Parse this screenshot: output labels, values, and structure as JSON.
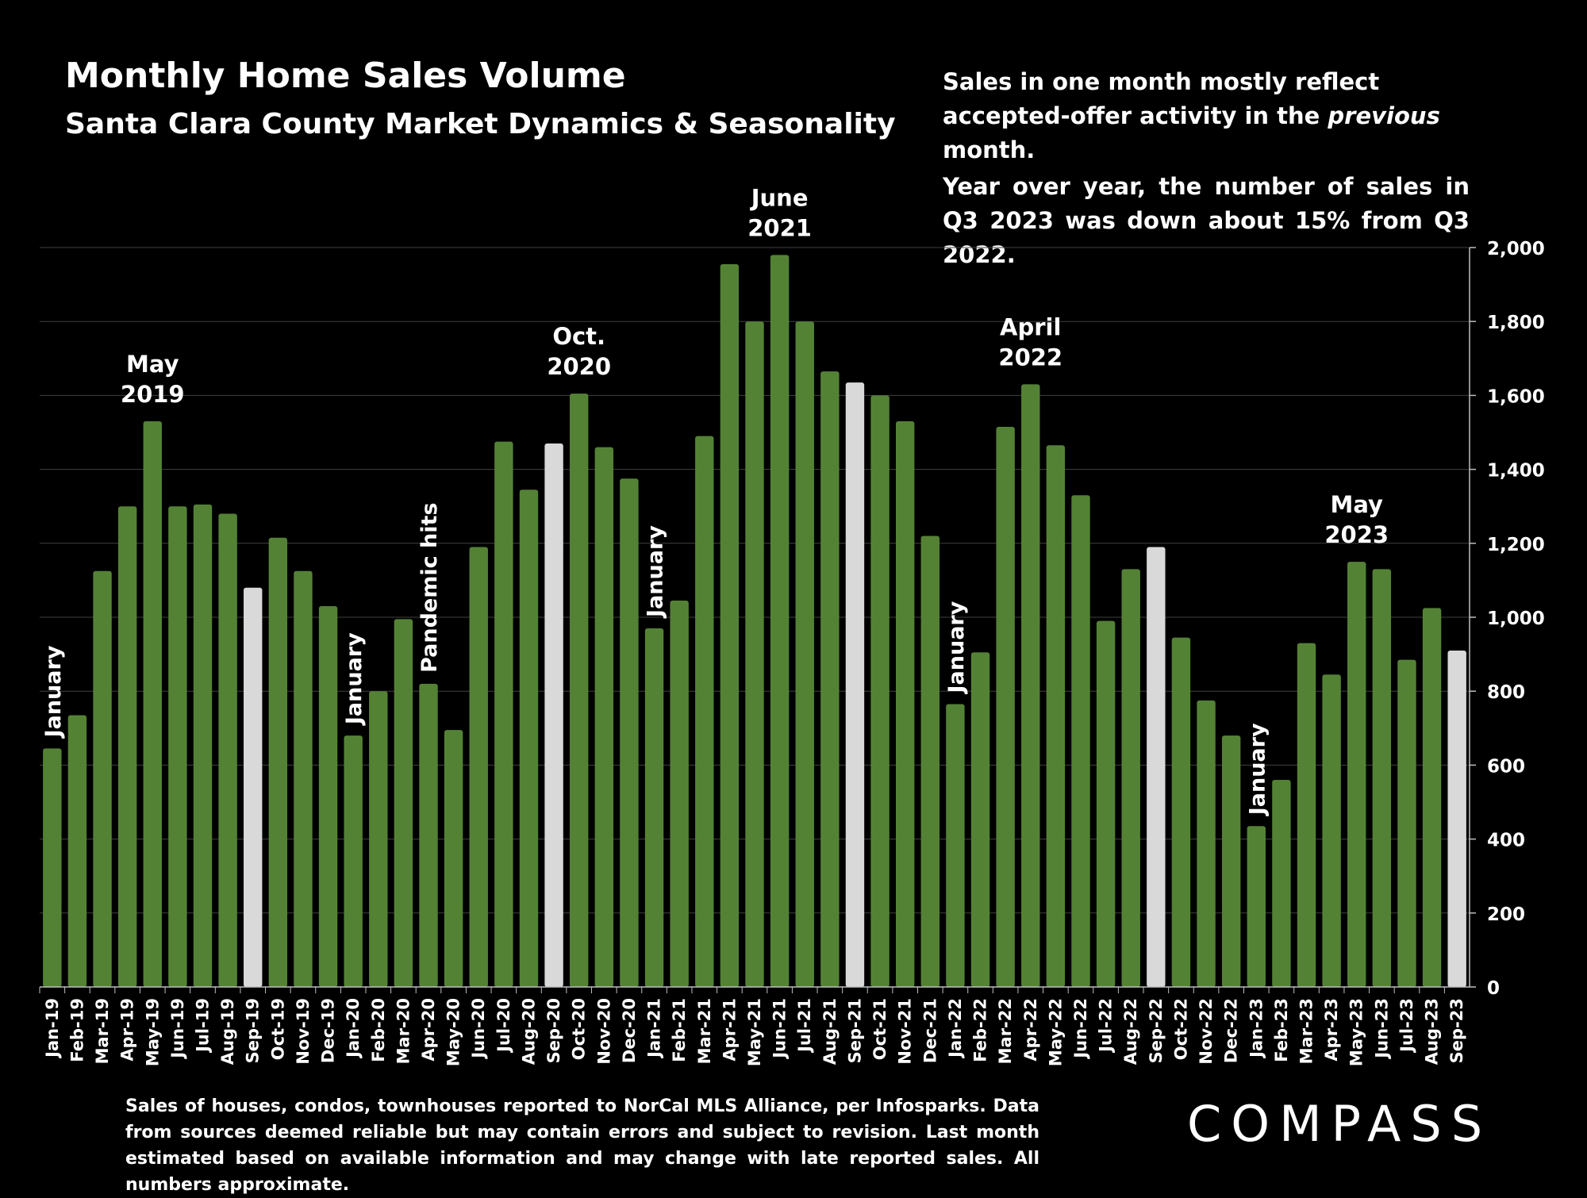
{
  "header": {
    "title": "Monthly Home Sales Volume",
    "subtitle": "Santa Clara County Market Dynamics & Seasonality"
  },
  "notes": {
    "line1_a": "Sales in one month mostly reflect accepted-offer activity in the ",
    "line1_em": "previous",
    "line1_b": " month.",
    "line2": "Year over year, the number of sales in Q3 2023 was down about 15% from Q3 2022."
  },
  "footnote": "Sales of houses, condos, townhouses reported to NorCal MLS Alliance, per Infosparks. Data from sources deemed reliable but may contain errors and subject to revision. Last month estimated based on available information and may change with late reported sales. All numbers approximate.",
  "logo": "COMPASS",
  "colors": {
    "bar": "#548235",
    "highlight": "#d9d9d9",
    "grid": "#404040",
    "background": "#000000",
    "text": "#ffffff"
  },
  "chart_data": {
    "type": "bar",
    "title": "Monthly Home Sales Volume",
    "subtitle": "Santa Clara County Market Dynamics & Seasonality",
    "ylim": [
      0,
      2000
    ],
    "yticks": [
      "0",
      "200",
      "400",
      "600",
      "800",
      "1,000",
      "1,200",
      "1,400",
      "1,600",
      "1,800",
      "2,000"
    ],
    "y_axis_side": "right",
    "grid": true,
    "categories": [
      "Jan-19",
      "Feb-19",
      "Mar-19",
      "Apr-19",
      "May-19",
      "Jun-19",
      "Jul-19",
      "Aug-19",
      "Sep-19",
      "Oct-19",
      "Nov-19",
      "Dec-19",
      "Jan-20",
      "Feb-20",
      "Mar-20",
      "Apr-20",
      "May-20",
      "Jun-20",
      "Jul-20",
      "Aug-20",
      "Sep-20",
      "Oct-20",
      "Nov-20",
      "Dec-20",
      "Jan-21",
      "Feb-21",
      "Mar-21",
      "Apr-21",
      "May-21",
      "Jun-21",
      "Jul-21",
      "Aug-21",
      "Sep-21",
      "Oct-21",
      "Nov-21",
      "Dec-21",
      "Jan-22",
      "Feb-22",
      "Mar-22",
      "Apr-22",
      "May-22",
      "Jun-22",
      "Jul-22",
      "Aug-22",
      "Sep-22",
      "Oct-22",
      "Nov-22",
      "Dec-22",
      "Jan-23",
      "Feb-23",
      "Mar-23",
      "Apr-23",
      "May-23",
      "Jun-23",
      "Jul-23",
      "Aug-23",
      "Sep-23"
    ],
    "values": [
      645,
      735,
      1125,
      1300,
      1530,
      1300,
      1305,
      1280,
      1080,
      1215,
      1125,
      1030,
      680,
      800,
      995,
      820,
      695,
      1190,
      1475,
      1345,
      1470,
      1605,
      1460,
      1375,
      970,
      1045,
      1490,
      1955,
      1800,
      1980,
      1800,
      1665,
      1635,
      1600,
      1530,
      1220,
      765,
      905,
      1515,
      1630,
      1465,
      1330,
      990,
      1130,
      1190,
      945,
      775,
      680,
      435,
      560,
      930,
      845,
      1150,
      1130,
      885,
      1025,
      910
    ],
    "highlighted": [
      "Sep-19",
      "Sep-20",
      "Sep-21",
      "Sep-22",
      "Sep-23"
    ],
    "annotations": [
      {
        "category": "Jan-19",
        "text": "January",
        "rotated": true
      },
      {
        "category": "May-19",
        "lines": [
          "May",
          "2019"
        ]
      },
      {
        "category": "Jan-20",
        "text": "January",
        "rotated": true
      },
      {
        "category": "Apr-20",
        "text": "Pandemic hits",
        "rotated": true
      },
      {
        "category": "Oct-20",
        "lines": [
          "Oct.",
          "2020"
        ]
      },
      {
        "category": "Jan-21",
        "text": "January",
        "rotated": true
      },
      {
        "category": "Jun-21",
        "lines": [
          "June",
          "2021"
        ]
      },
      {
        "category": "Jan-22",
        "text": "January",
        "rotated": true
      },
      {
        "category": "Apr-22",
        "lines": [
          "April",
          "2022"
        ]
      },
      {
        "category": "Jan-23",
        "text": "January",
        "rotated": true
      },
      {
        "category": "May-23",
        "lines": [
          "May",
          "2023"
        ]
      }
    ]
  }
}
